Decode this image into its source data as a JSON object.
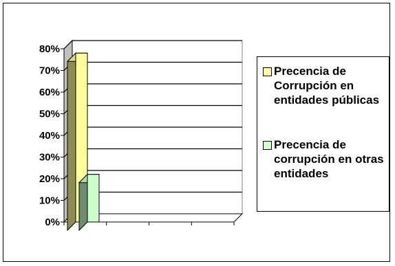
{
  "chart_data": {
    "type": "bar",
    "categories": [
      ""
    ],
    "series": [
      {
        "name": "Precencia de Corrupción en entidades públicas",
        "values": [
          0.78
        ],
        "color": "#FFFF99"
      },
      {
        "name": "Precencia de corrupción en otras entidades",
        "values": [
          0.22
        ],
        "color": "#CCFFCC"
      }
    ],
    "ylim": [
      0,
      0.8
    ],
    "yticks": [
      0,
      0.1,
      0.2,
      0.3,
      0.4,
      0.5,
      0.6,
      0.7,
      0.8
    ],
    "ytick_labels": [
      "0%",
      "10%",
      "20%",
      "30%",
      "40%",
      "50%",
      "60%",
      "70%",
      "80%"
    ],
    "grid": true,
    "style": "3d",
    "legend_position": "right"
  }
}
